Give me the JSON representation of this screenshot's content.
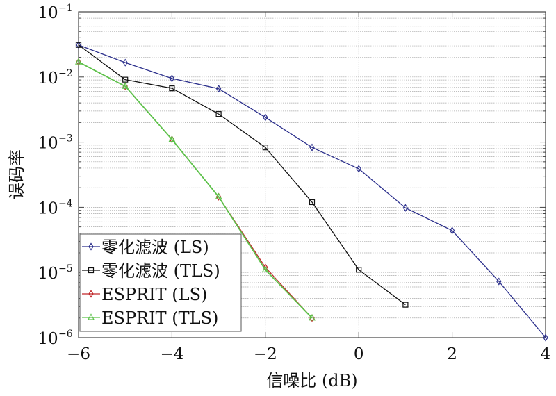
{
  "chart_data": {
    "type": "line",
    "title": "",
    "xlabel": "信噪比 (dB)",
    "ylabel": "误码率",
    "xlim": [
      -6,
      4
    ],
    "ylim": [
      1e-06,
      0.1
    ],
    "yscale": "log",
    "grid": true,
    "legend_position": "bottom-left",
    "x_ticks": [
      "−6",
      "−4",
      "−2",
      "0",
      "2",
      "4"
    ],
    "x_tick_values": [
      -6,
      -4,
      -2,
      0,
      2,
      4
    ],
    "y_ticks": [
      {
        "base": "10",
        "exp": "-1",
        "value": 0.1
      },
      {
        "base": "10",
        "exp": "-2",
        "value": 0.01
      },
      {
        "base": "10",
        "exp": "-3",
        "value": 0.001
      },
      {
        "base": "10",
        "exp": "-4",
        "value": 0.0001
      },
      {
        "base": "10",
        "exp": "-5",
        "value": 1e-05
      },
      {
        "base": "10",
        "exp": "-6",
        "value": 1e-06
      }
    ],
    "series": [
      {
        "name": "零化滤波 (LS)",
        "color": "#2b2f8c",
        "marker": "diamond",
        "x": [
          -6,
          -5,
          -4,
          -3,
          -2,
          -1,
          0,
          1,
          2,
          3,
          4
        ],
        "values": [
          0.031,
          0.0166,
          0.0095,
          0.0066,
          0.0024,
          0.00083,
          0.00039,
          9.8e-05,
          4.4e-05,
          7.3e-06,
          1e-06
        ]
      },
      {
        "name": "零化滤波 (TLS)",
        "color": "#111111",
        "marker": "square",
        "x": [
          -6,
          -5,
          -4,
          -3,
          -2,
          -1,
          0,
          1
        ],
        "values": [
          0.031,
          0.0091,
          0.0067,
          0.0027,
          0.00083,
          0.00012,
          1.1e-05,
          3.2e-06
        ]
      },
      {
        "name": "ESPRIT (LS)",
        "color": "#c0282a",
        "marker": "diamond",
        "x": [
          -6,
          -5,
          -4,
          -3,
          -2,
          -1
        ],
        "values": [
          0.017,
          0.0072,
          0.0011,
          0.000145,
          1.2e-05,
          2e-06
        ]
      },
      {
        "name": "ESPRIT (TLS)",
        "color": "#5cc24a",
        "marker": "triangle",
        "x": [
          -6,
          -5,
          -4,
          -3,
          -2,
          -1
        ],
        "values": [
          0.017,
          0.0072,
          0.0011,
          0.000145,
          1.1e-05,
          2e-06
        ]
      }
    ]
  }
}
